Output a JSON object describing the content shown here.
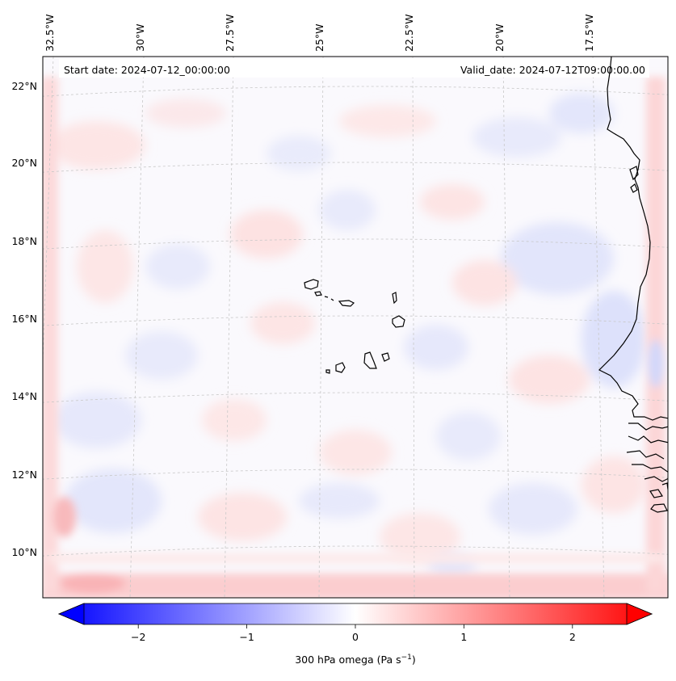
{
  "header": {
    "start_label": "Start date: 2024-07-12_00:00:00",
    "valid_label": "Valid_date: 2024-07-12T09:00:00.00"
  },
  "lon_labels": [
    "32.5°W",
    "30°W",
    "27.5°W",
    "25°W",
    "22.5°W",
    "20°W",
    "17.5°W"
  ],
  "lat_labels": [
    "22°N",
    "20°N",
    "18°N",
    "16°N",
    "14°N",
    "12°N",
    "10°N"
  ],
  "colorbar": {
    "ticks": [
      "−2",
      "−1",
      "0",
      "1",
      "2"
    ],
    "tick_values": [
      -2,
      -1,
      0,
      1,
      2
    ],
    "range": [
      -2.5,
      2.5
    ],
    "label_main": "300 hPa omega (Pa s",
    "label_exp": "−1",
    "label_close": ")",
    "colors": {
      "min": "#0000ff",
      "mid": "#ffffff",
      "max": "#ff0000"
    }
  },
  "field": {
    "variable": "300 hPa omega",
    "units": "Pa s−1"
  },
  "colors": {
    "coastline": "#000000",
    "gridline": "#c8c8c8",
    "frame": "#000000"
  }
}
